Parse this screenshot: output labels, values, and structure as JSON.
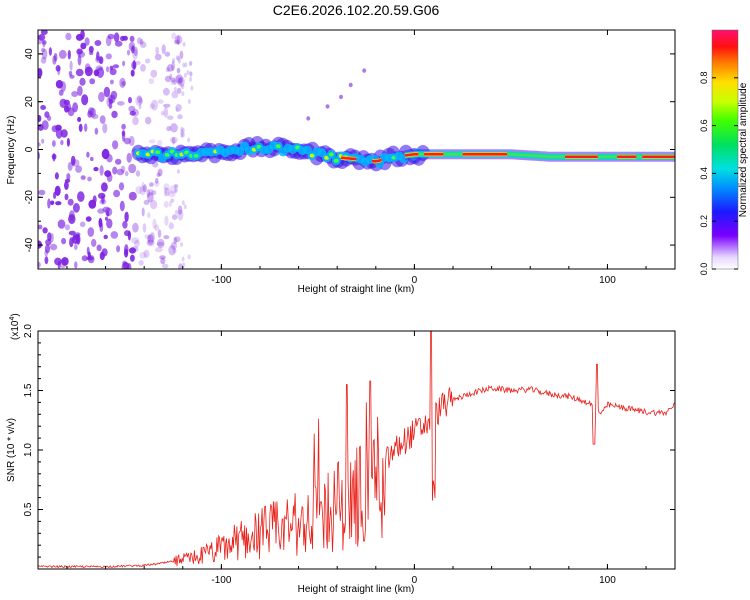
{
  "title": "C2E6.2026.102.20.59.G06",
  "colors": {
    "line": "#e8201a",
    "mark": "#7a1fe0",
    "axis": "#000000"
  },
  "chart_data": [
    {
      "type": "heatmap",
      "xlabel": "Height of straight line (km)",
      "ylabel": "Frequency (Hz)",
      "xlim": [
        -195,
        135
      ],
      "ylim": [
        -50,
        50
      ],
      "xticks": [
        -100,
        0,
        100
      ],
      "yticks": [
        -40,
        -20,
        0,
        20,
        40
      ],
      "colorbar": {
        "label": "Normalized spectral amplitude",
        "range": [
          0,
          1
        ],
        "ticks": [
          "0.0",
          "0.2",
          "0.4",
          "0.6",
          "0.8"
        ]
      },
      "ridge": {
        "x": [
          -143,
          -120,
          -100,
          -80,
          -60,
          -45,
          -30,
          -20,
          -10,
          0,
          10,
          30,
          50,
          70,
          90,
          110,
          135
        ],
        "y": [
          -2,
          -2,
          -1,
          1,
          0,
          -3,
          -4,
          -5,
          -3,
          -2,
          -2,
          -2,
          -2,
          -3,
          -3,
          -3,
          -3
        ]
      }
    },
    {
      "type": "line",
      "xlabel": "Height of straight line (km)",
      "ylabel": "SNR (10 * v/v)",
      "scale_label": "(x10",
      "scale_exp": "4",
      "xlim": [
        -195,
        135
      ],
      "ylim": [
        0,
        2.0
      ],
      "xticks": [
        -100,
        0,
        100
      ],
      "yticks": [
        "0.5",
        "1.0",
        "1.5",
        "2.0"
      ],
      "series": [
        {
          "name": "SNR",
          "x": [
            -195,
            -160,
            -140,
            -130,
            -120,
            -110,
            -100,
            -90,
            -80,
            -70,
            -60,
            -50,
            -45,
            -40,
            -35,
            -30,
            -25,
            -20,
            -15,
            -10,
            -5,
            0,
            5,
            8,
            10,
            12,
            15,
            20,
            30,
            40,
            50,
            60,
            70,
            80,
            90,
            94,
            97,
            100,
            110,
            120,
            130,
            135
          ],
          "y": [
            0.02,
            0.02,
            0.03,
            0.05,
            0.08,
            0.12,
            0.18,
            0.26,
            0.32,
            0.36,
            0.4,
            0.45,
            0.52,
            0.55,
            0.6,
            0.65,
            0.72,
            0.82,
            0.9,
            1.0,
            1.08,
            1.15,
            1.2,
            1.25,
            1.28,
            1.32,
            1.38,
            1.42,
            1.48,
            1.52,
            1.5,
            1.51,
            1.47,
            1.45,
            1.4,
            1.35,
            1.3,
            1.38,
            1.35,
            1.32,
            1.31,
            1.38
          ]
        }
      ]
    }
  ]
}
